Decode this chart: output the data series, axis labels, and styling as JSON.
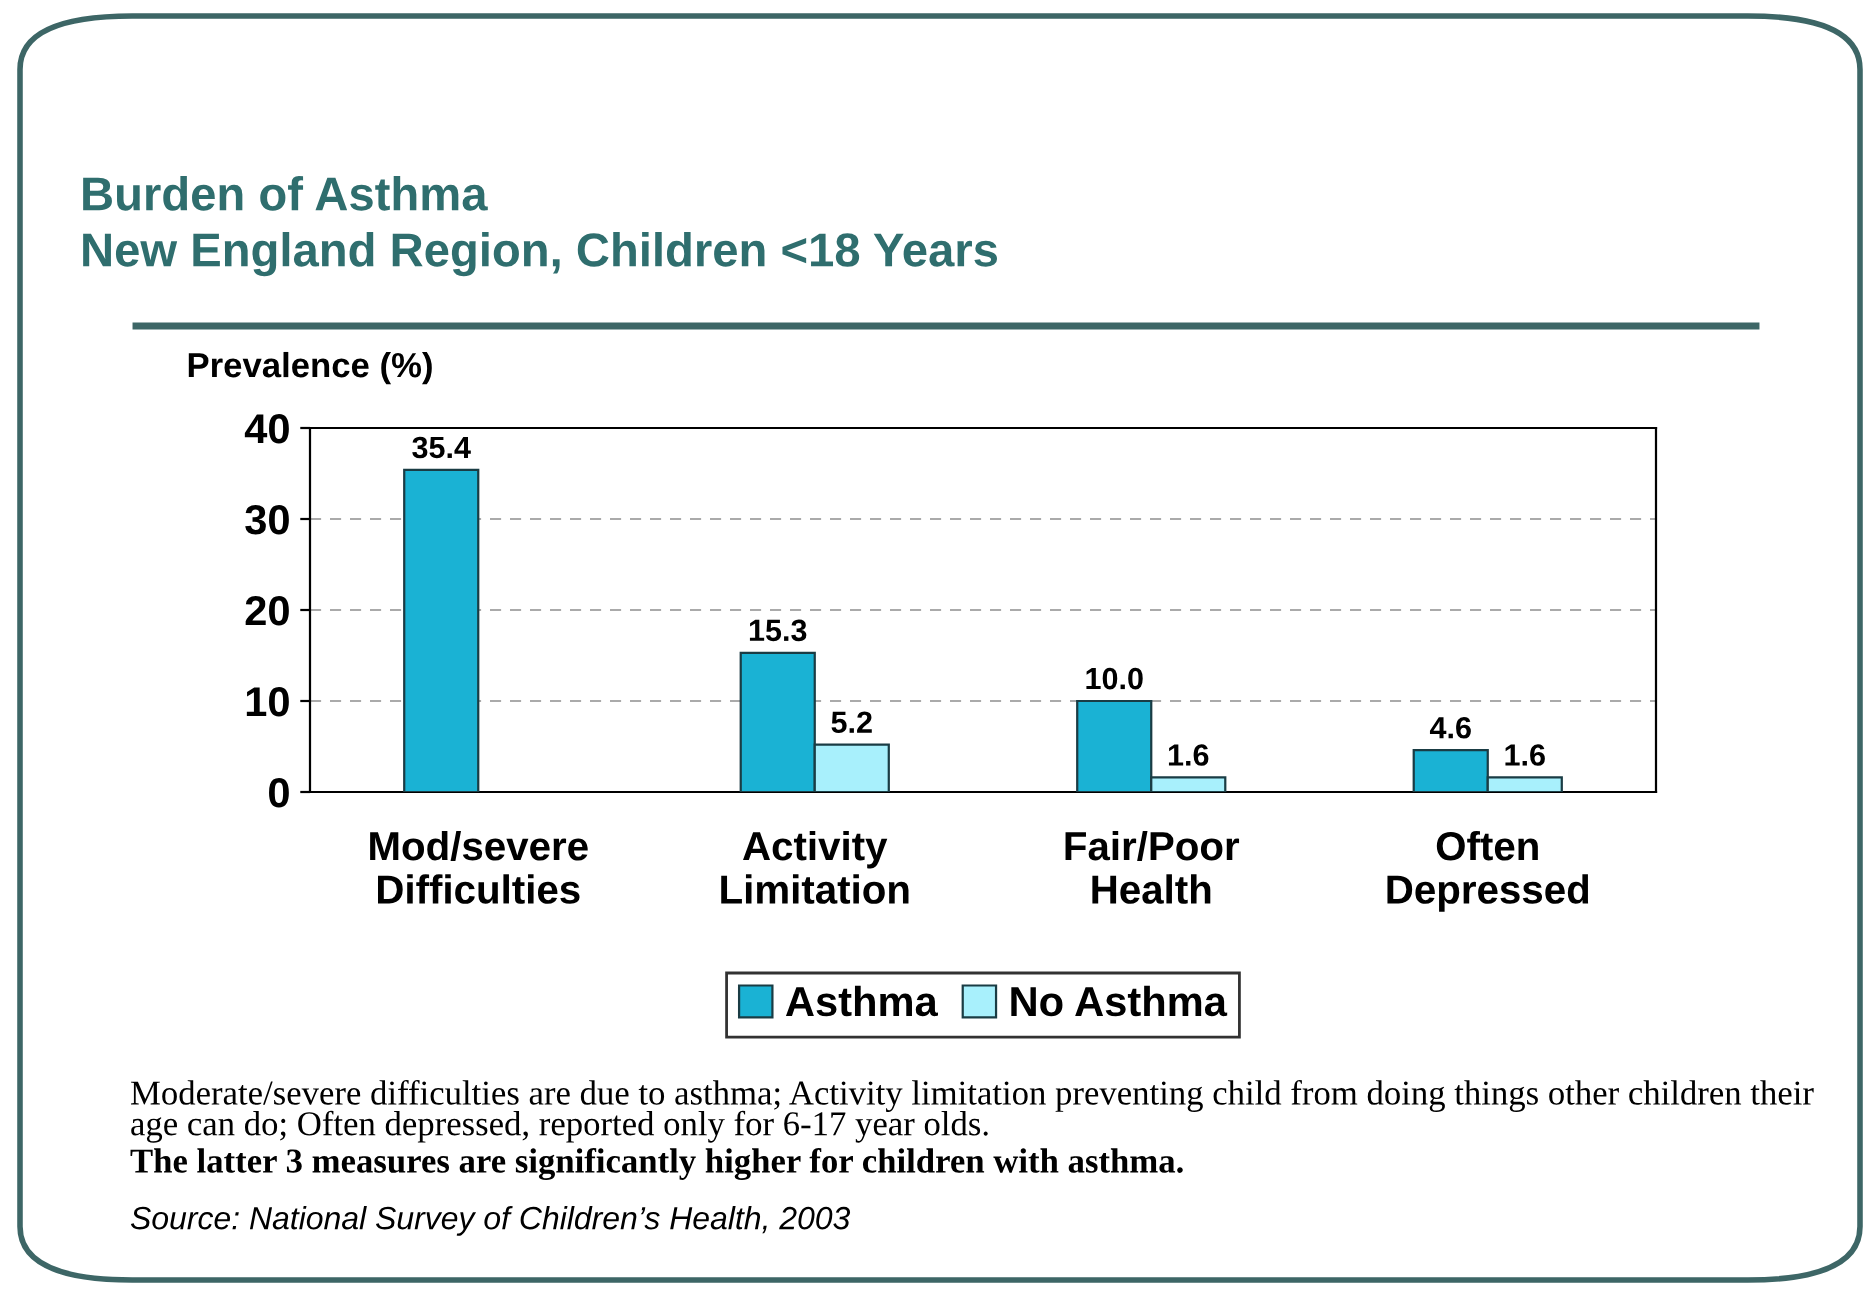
{
  "chart_data": {
    "type": "bar",
    "title": "Burden of Asthma\nNew England Region, Children <18 Years",
    "ylabel": "Prevalence (%)",
    "categories": [
      "Mod/severe\nDifficulties",
      "Activity\nLimitation",
      "Fair/Poor\nHealth",
      "Often\nDepressed"
    ],
    "series": [
      {
        "name": "Asthma",
        "color": "#1ab2d4",
        "values": [
          35.4,
          15.3,
          10.0,
          4.6
        ],
        "value_labels": [
          "35.4",
          "15.3",
          "10.0",
          "4.6"
        ]
      },
      {
        "name": "No Asthma",
        "color": "#a8f0fc",
        "values": [
          null,
          5.2,
          1.6,
          1.6
        ],
        "value_labels": [
          null,
          "5.2",
          "1.6",
          "1.6"
        ]
      }
    ],
    "ylim": [
      0,
      40
    ],
    "yticks": [
      0,
      10,
      20,
      30,
      40
    ],
    "grid": "y",
    "legend": "bottom",
    "annotations": [
      "Moderate/severe difficulties are due to asthma; Activity limitation preventing child from doing things other children their age can do; Often depressed, reported only for 6-17 year olds.",
      "The latter 3 measures are significantly higher for children with asthma.",
      "Source: National Survey of Children’s Health, 2003"
    ]
  }
}
